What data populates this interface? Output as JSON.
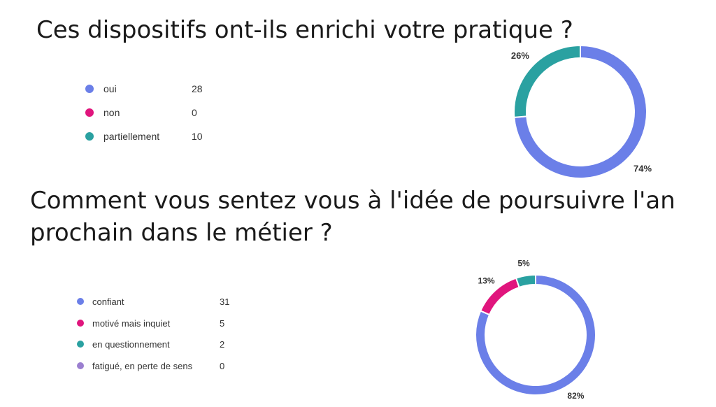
{
  "colors": {
    "blue": "#6b7fe8",
    "magenta": "#e0157d",
    "teal": "#2aa1a1",
    "purple": "#9b7fd0"
  },
  "chart_data": [
    {
      "type": "pie",
      "title": "Ces dispositifs ont-ils enrichi votre pratique ?",
      "categories": [
        "oui",
        "non",
        "partiellement"
      ],
      "values": [
        28,
        0,
        10
      ],
      "percent_labels": [
        "74%",
        "",
        "26%"
      ],
      "colors": [
        "#6b7fe8",
        "#e0157d",
        "#2aa1a1"
      ],
      "donut": true,
      "legend": "left"
    },
    {
      "type": "pie",
      "title": "Comment vous sentez vous à l'idée de poursuivre l'an prochain dans le métier ?",
      "title_lines": [
        "Comment vous sentez vous à l'idée de poursuivre l'an",
        "prochain dans le métier ?"
      ],
      "categories": [
        "confiant",
        "motivé mais inquiet",
        "en questionnement",
        "fatigué, en perte de sens"
      ],
      "values": [
        31,
        5,
        2,
        0
      ],
      "percent_labels": [
        "82%",
        "13%",
        "5%",
        ""
      ],
      "colors": [
        "#6b7fe8",
        "#e0157d",
        "#2aa1a1",
        "#9b7fd0"
      ],
      "donut": true,
      "legend": "left"
    }
  ]
}
